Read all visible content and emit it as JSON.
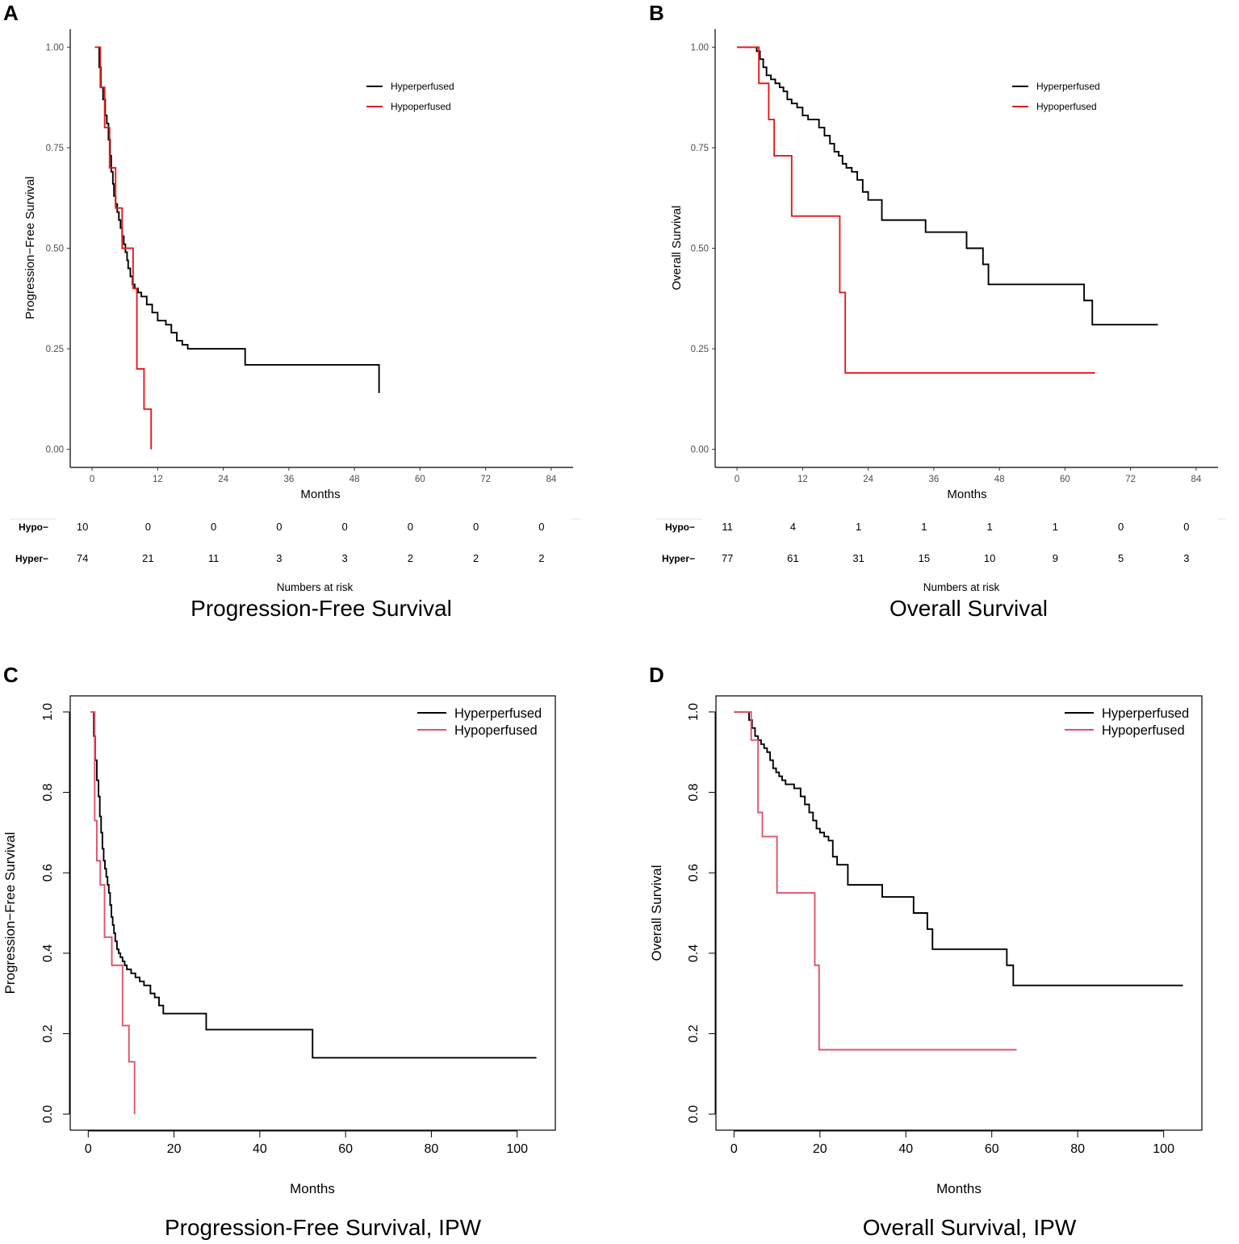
{
  "colors": {
    "hyper": "#000000",
    "hypo_ggplot": "#e41a1c",
    "hypo_base": "#df536b",
    "axis": "#000000",
    "tick_text": "#4d4d4d"
  },
  "chart_data": [
    {
      "panel": "A",
      "type": "line",
      "style": "step",
      "title": "Progression-Free Survival",
      "xlabel": "Months",
      "ylabel": "Progression−Free Survival",
      "xlim": [
        -4,
        88
      ],
      "ylim": [
        -0.045,
        1.045
      ],
      "xticks": [
        0,
        12,
        24,
        36,
        48,
        60,
        72,
        84
      ],
      "xtick_labels": [
        "0",
        "12",
        "24",
        "36",
        "48",
        "60",
        "72",
        "84"
      ],
      "yticks": [
        0,
        0.25,
        0.5,
        0.75,
        1
      ],
      "ytick_labels": [
        "0.00",
        "0.25",
        "0.50",
        "0.75",
        "1.00"
      ],
      "legend": [
        "Hyperperfused",
        "Hypoperfused"
      ],
      "legend_position": "top-right",
      "series": [
        {
          "name": "Hyperperfused",
          "x": [
            1.0,
            1.3,
            1.6,
            2.0,
            2.4,
            2.7,
            3.0,
            3.3,
            3.5,
            3.8,
            4.0,
            4.3,
            4.6,
            4.9,
            5.2,
            5.5,
            5.8,
            6.1,
            6.4,
            6.6,
            7.0,
            7.4,
            7.8,
            8.4,
            9.0,
            10.0,
            11.0,
            12.0,
            13.5,
            14.5,
            15.5,
            16.5,
            17.5,
            28.0,
            52.5
          ],
          "y": [
            1.0,
            0.95,
            0.9,
            0.87,
            0.83,
            0.81,
            0.77,
            0.73,
            0.69,
            0.66,
            0.63,
            0.61,
            0.59,
            0.57,
            0.55,
            0.53,
            0.51,
            0.49,
            0.47,
            0.45,
            0.43,
            0.41,
            0.4,
            0.39,
            0.38,
            0.36,
            0.34,
            0.32,
            0.31,
            0.29,
            0.27,
            0.26,
            0.25,
            0.21,
            0.14
          ],
          "end_x": 52.5
        },
        {
          "name": "Hypoperfused",
          "x": [
            0.5,
            1.5,
            2.3,
            3.2,
            4.3,
            5.5,
            7.5,
            8.2,
            9.5,
            10.8
          ],
          "y": [
            1.0,
            0.9,
            0.8,
            0.7,
            0.6,
            0.5,
            0.4,
            0.2,
            0.1,
            0.0
          ],
          "end_x": 10.8
        }
      ],
      "risk_table": {
        "label": "Numbers at risk",
        "row_labels": [
          "Hypo−",
          "Hyper−"
        ],
        "times": [
          0,
          12,
          24,
          36,
          48,
          60,
          72,
          84
        ],
        "hypo": [
          "10",
          "0",
          "0",
          "0",
          "0",
          "0",
          "0",
          "0"
        ],
        "hyper": [
          "74",
          "21",
          "11",
          "3",
          "3",
          "2",
          "2",
          "2"
        ]
      }
    },
    {
      "panel": "B",
      "type": "line",
      "style": "step",
      "title": "Overall Survival",
      "xlabel": "Months",
      "ylabel": "Overall Survival",
      "xlim": [
        -4,
        88
      ],
      "ylim": [
        -0.045,
        1.045
      ],
      "xticks": [
        0,
        12,
        24,
        36,
        48,
        60,
        72,
        84
      ],
      "xtick_labels": [
        "0",
        "12",
        "24",
        "36",
        "48",
        "60",
        "72",
        "84"
      ],
      "yticks": [
        0,
        0.25,
        0.5,
        0.75,
        1
      ],
      "ytick_labels": [
        "0.00",
        "0.25",
        "0.50",
        "0.75",
        "1.00"
      ],
      "legend": [
        "Hyperperfused",
        "Hypoperfused"
      ],
      "legend_position": "top-right",
      "series": [
        {
          "name": "Hyperperfused",
          "x": [
            0,
            3.6,
            4.2,
            4.8,
            5.4,
            6.2,
            7.0,
            7.8,
            8.5,
            9.2,
            10.0,
            11.0,
            12.0,
            13.0,
            15.0,
            16.0,
            17.0,
            17.8,
            18.6,
            19.3,
            20.0,
            21.0,
            22.0,
            23.0,
            24.0,
            26.5,
            34.5,
            42.0,
            45.0,
            46.0,
            63.5,
            65.0
          ],
          "y": [
            1.0,
            0.99,
            0.97,
            0.95,
            0.93,
            0.92,
            0.91,
            0.9,
            0.89,
            0.87,
            0.86,
            0.85,
            0.83,
            0.82,
            0.8,
            0.78,
            0.76,
            0.74,
            0.73,
            0.71,
            0.7,
            0.69,
            0.67,
            0.64,
            0.62,
            0.57,
            0.54,
            0.5,
            0.46,
            0.41,
            0.37,
            0.31
          ],
          "end_x": 77
        },
        {
          "name": "Hypoperfused",
          "x": [
            0,
            4,
            5.8,
            6.8,
            10.0,
            18.8,
            19.8
          ],
          "y": [
            1.0,
            0.91,
            0.82,
            0.73,
            0.58,
            0.39,
            0.19
          ],
          "end_x": 65.5
        }
      ],
      "risk_table": {
        "label": "Numbers at risk",
        "row_labels": [
          "Hypo−",
          "Hyper−"
        ],
        "times": [
          0,
          12,
          24,
          36,
          48,
          60,
          72,
          84
        ],
        "hypo": [
          "11",
          "4",
          "1",
          "1",
          "1",
          "1",
          "0",
          "0"
        ],
        "hyper": [
          "77",
          "61",
          "31",
          "15",
          "10",
          "9",
          "5",
          "3"
        ]
      }
    },
    {
      "panel": "C",
      "type": "line",
      "style": "step",
      "title": "Progression-Free Survival, IPW",
      "xlabel": "Months",
      "ylabel": "Progression−Free Survival",
      "xlim": [
        -4.2,
        108.9
      ],
      "ylim": [
        -0.04,
        1.04
      ],
      "xticks": [
        0,
        20,
        40,
        60,
        80,
        100
      ],
      "xtick_labels": [
        "0",
        "20",
        "40",
        "60",
        "80",
        "100"
      ],
      "yticks": [
        0,
        0.2,
        0.4,
        0.6,
        0.8,
        1
      ],
      "ytick_labels": [
        "0.0",
        "0.2",
        "0.4",
        "0.6",
        "0.8",
        "1.0"
      ],
      "legend": [
        "Hyperperfused",
        "Hypoperfused"
      ],
      "legend_position": "top-right",
      "series": [
        {
          "name": "Hyperperfused",
          "x": [
            1.0,
            1.3,
            1.6,
            2.0,
            2.4,
            2.7,
            3.0,
            3.3,
            3.6,
            3.9,
            4.2,
            4.5,
            4.8,
            5.1,
            5.4,
            5.7,
            6.0,
            6.3,
            6.7,
            7.1,
            7.5,
            8.0,
            8.5,
            9.0,
            10.0,
            11.0,
            12.0,
            13.0,
            14.5,
            15.5,
            16.5,
            17.5,
            27.5,
            52.3
          ],
          "y": [
            1.0,
            0.94,
            0.88,
            0.83,
            0.79,
            0.74,
            0.7,
            0.66,
            0.63,
            0.61,
            0.59,
            0.57,
            0.55,
            0.52,
            0.49,
            0.47,
            0.45,
            0.43,
            0.41,
            0.4,
            0.39,
            0.38,
            0.37,
            0.36,
            0.35,
            0.34,
            0.33,
            0.32,
            0.3,
            0.29,
            0.27,
            0.25,
            0.21,
            0.14
          ],
          "end_x": 104.5
        },
        {
          "name": "Hypoperfused",
          "x": [
            0.5,
            1.5,
            2.0,
            2.8,
            3.8,
            5.5,
            8.0,
            9.5,
            10.8
          ],
          "y": [
            1.0,
            0.73,
            0.63,
            0.57,
            0.44,
            0.37,
            0.22,
            0.13,
            0.0
          ],
          "end_x": 10.8
        }
      ]
    },
    {
      "panel": "D",
      "type": "line",
      "style": "step",
      "title": "Overall Survival, IPW",
      "xlabel": "Months",
      "ylabel": "Overall Survival",
      "xlim": [
        -4.2,
        108.9
      ],
      "ylim": [
        -0.04,
        1.04
      ],
      "xticks": [
        0,
        20,
        40,
        60,
        80,
        100
      ],
      "xtick_labels": [
        "0",
        "20",
        "40",
        "60",
        "80",
        "100"
      ],
      "yticks": [
        0,
        0.2,
        0.4,
        0.6,
        0.8,
        1
      ],
      "ytick_labels": [
        "0.0",
        "0.2",
        "0.4",
        "0.6",
        "0.8",
        "1.0"
      ],
      "legend": [
        "Hyperperfused",
        "Hypoperfused"
      ],
      "legend_position": "top-right",
      "series": [
        {
          "name": "Hyperperfused",
          "x": [
            0,
            3.5,
            4.2,
            4.9,
            5.6,
            6.3,
            7.0,
            7.7,
            8.4,
            9.1,
            9.8,
            10.5,
            11.2,
            12.0,
            14.0,
            15.5,
            16.5,
            17.5,
            18.4,
            19.2,
            20.0,
            21.0,
            22.0,
            23.0,
            24.0,
            26.5,
            34.5,
            41.8,
            45.0,
            46.2,
            63.5,
            65.0
          ],
          "y": [
            1.0,
            0.98,
            0.96,
            0.94,
            0.93,
            0.92,
            0.91,
            0.9,
            0.88,
            0.86,
            0.85,
            0.84,
            0.83,
            0.82,
            0.81,
            0.79,
            0.77,
            0.75,
            0.73,
            0.71,
            0.7,
            0.69,
            0.68,
            0.64,
            0.62,
            0.57,
            0.54,
            0.5,
            0.46,
            0.41,
            0.37,
            0.32
          ],
          "end_x": 104.5
        },
        {
          "name": "Hypoperfused",
          "x": [
            0,
            4,
            5.6,
            6.6,
            10.0,
            18.8,
            19.8
          ],
          "y": [
            1.0,
            0.93,
            0.75,
            0.69,
            0.55,
            0.37,
            0.16
          ],
          "end_x": 65.8
        }
      ]
    }
  ]
}
